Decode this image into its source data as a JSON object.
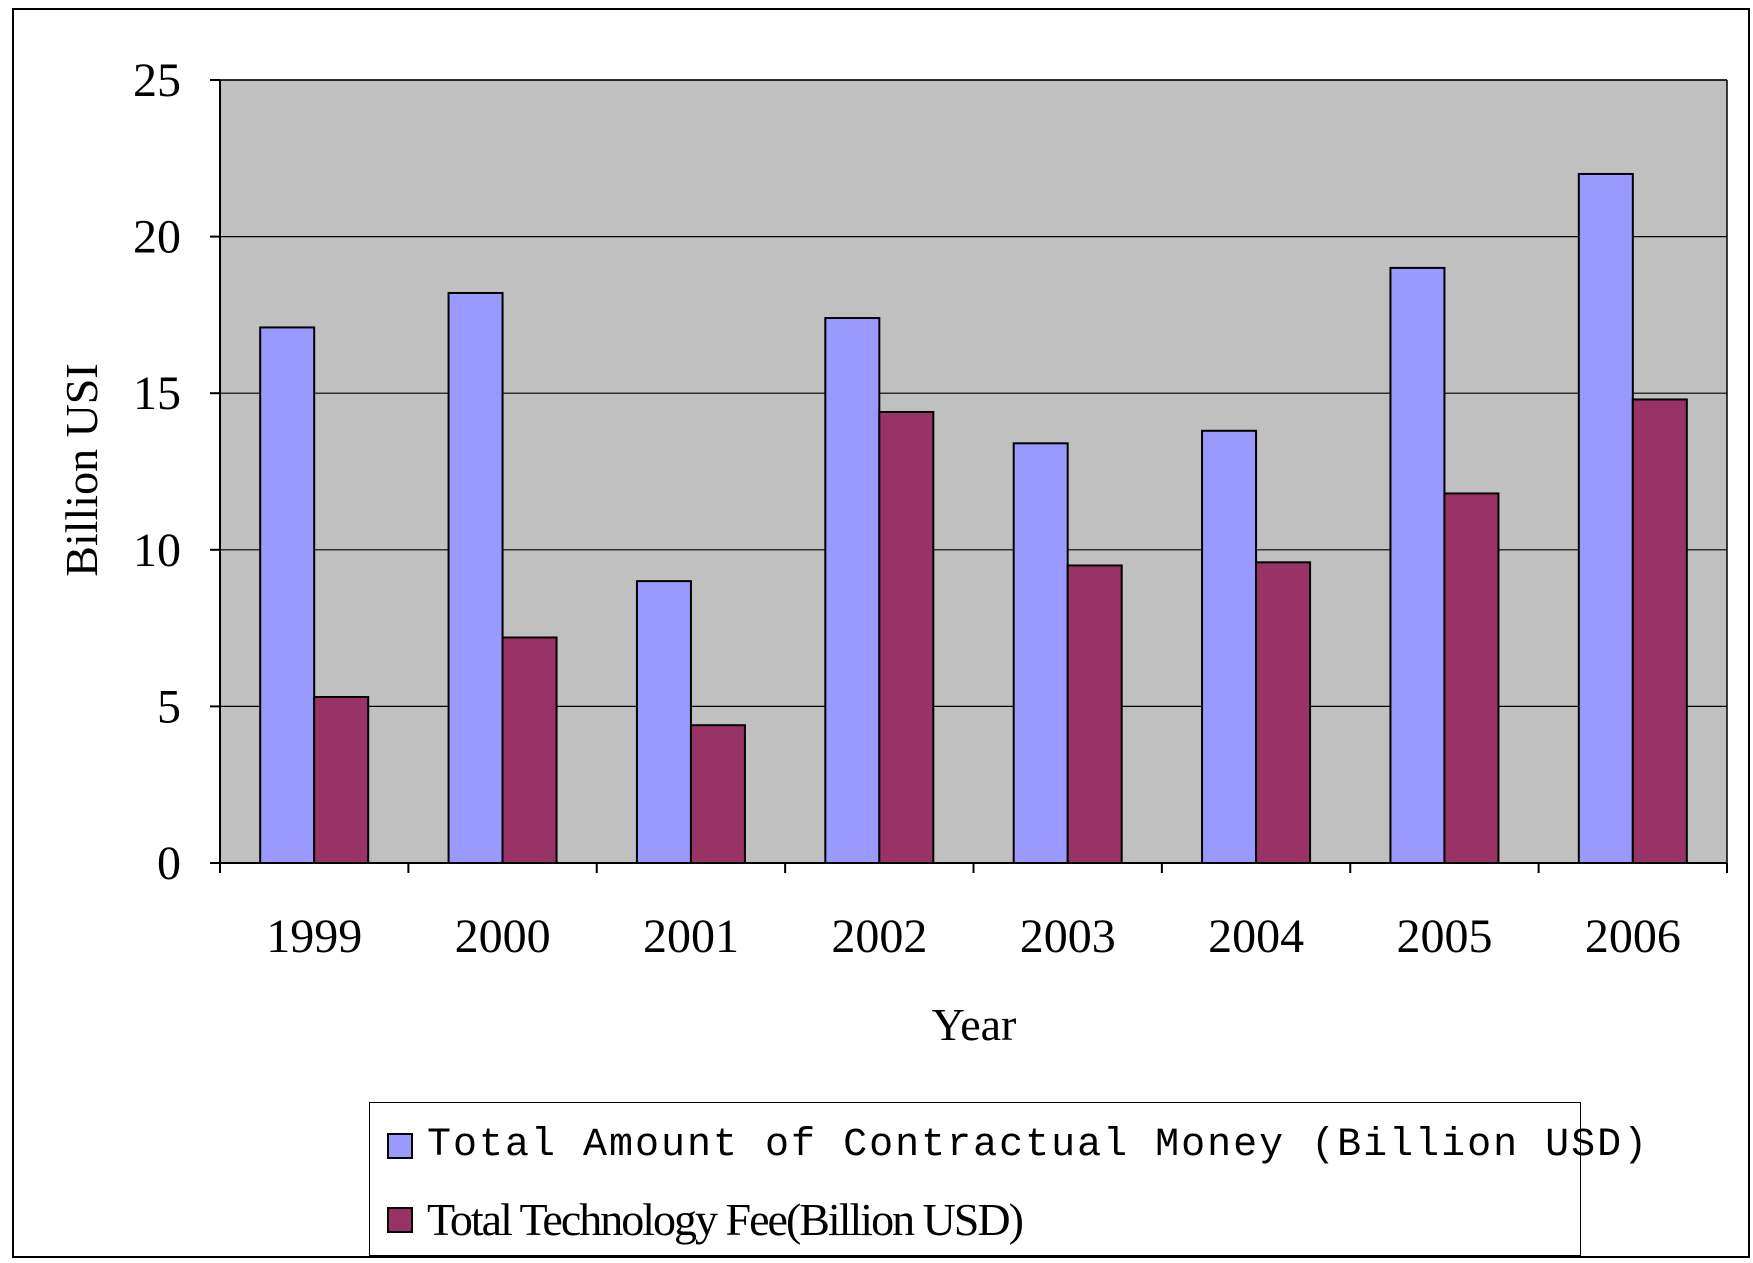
{
  "chart_data": {
    "type": "bar",
    "categories": [
      "1999",
      "2000",
      "2001",
      "2002",
      "2003",
      "2004",
      "2005",
      "2006"
    ],
    "series": [
      {
        "name": "Total Amount of Contractual Money (Billion USD)",
        "color": "#9999ff",
        "values": [
          17.1,
          18.2,
          9.0,
          17.4,
          13.4,
          13.8,
          19.0,
          22.0
        ]
      },
      {
        "name": "Total Technology Fee(Billion USD)",
        "color": "#993366",
        "values": [
          5.3,
          7.2,
          4.4,
          14.4,
          9.5,
          9.6,
          11.8,
          14.8
        ]
      }
    ],
    "xlabel": "Year",
    "ylabel": "Billion USI",
    "ylim": [
      0,
      25
    ],
    "yticks": [
      "0",
      "5",
      "10",
      "15",
      "20",
      "25"
    ],
    "plot_background": "#c0c0c0",
    "grid": true,
    "legend": "bottom"
  }
}
